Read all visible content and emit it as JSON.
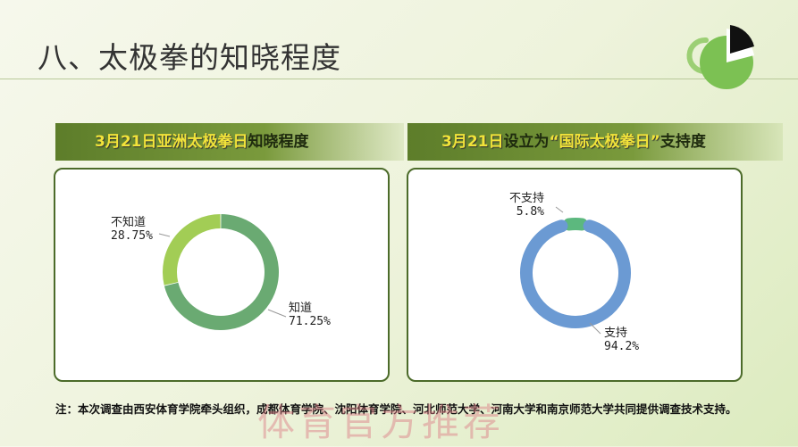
{
  "title": "八、太极拳的知晓程度",
  "note": "注：本次调查由西安体育学院牵头组织，成都体育学院、沈阳体育学院、河北师范大学、河南大学和南京师范大学共同提供调查技术支持。",
  "watermark": "体育官方推荐",
  "logo_icon": "pie-chart-icon",
  "chart_data": [
    {
      "type": "pie",
      "donut": true,
      "title_parts": {
        "a": "3月21日亚洲太极拳日",
        "b": "知晓程度"
      },
      "categories": [
        "知道",
        "不知道"
      ],
      "values": [
        71.25,
        28.75
      ],
      "labels": [
        "71.25%",
        "28.75%"
      ],
      "colors": [
        "#6aaa72",
        "#a2cd55"
      ]
    },
    {
      "type": "pie",
      "donut": true,
      "title_parts": {
        "a": "3月21日",
        "b": "设立为",
        "c": "“国际太极拳日”",
        "d": "支持度"
      },
      "categories": [
        "支持",
        "不支持"
      ],
      "values": [
        94.2,
        5.8
      ],
      "labels": [
        "94.2%",
        "5.8%"
      ],
      "colors": [
        "#6b9ad3",
        "#5cb87e"
      ]
    }
  ]
}
